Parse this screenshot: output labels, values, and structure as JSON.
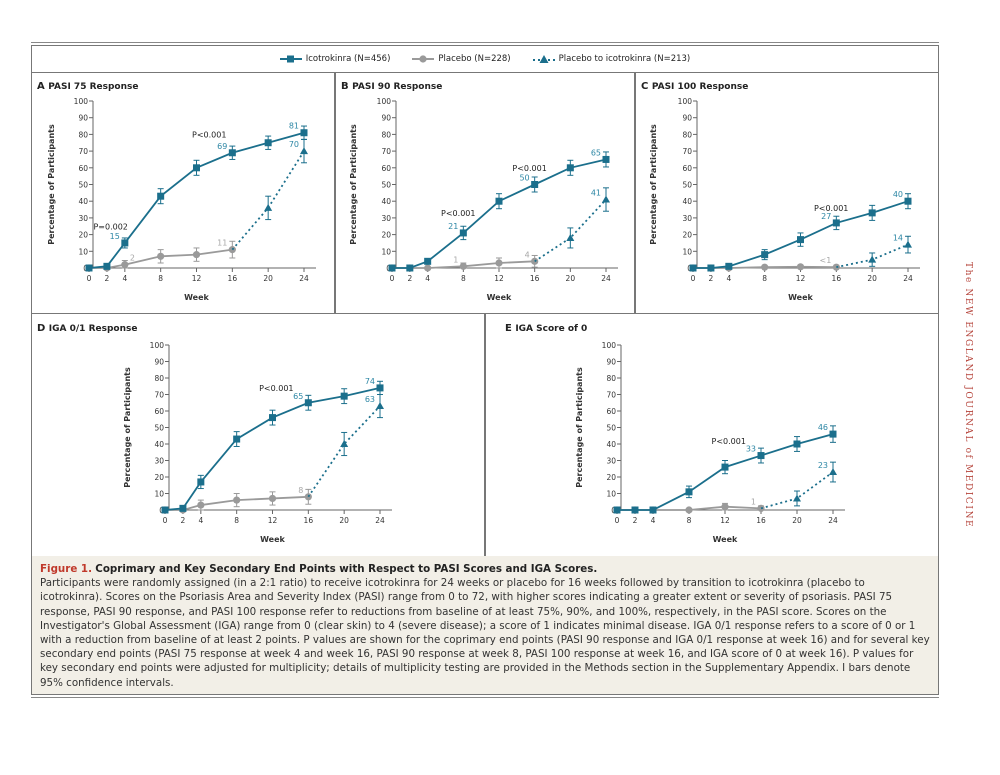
{
  "legend": {
    "items": [
      {
        "label": "Icotrokinra (N=456)",
        "marker": "square",
        "style": "solid",
        "color": "#1b6f8c"
      },
      {
        "label": "Placebo (N=228)",
        "marker": "circle",
        "style": "solid",
        "color": "#9a9a9a"
      },
      {
        "label": "Placebo to icotrokinra (N=213)",
        "marker": "triangle",
        "style": "dotted",
        "color": "#1b6f8c"
      }
    ]
  },
  "chart_data": [
    {
      "type": "line",
      "panel": "A",
      "title": "PASI 75 Response",
      "xlabel": "Week",
      "ylabel": "Percentage of Participants",
      "xticks": [
        0,
        2,
        4,
        8,
        12,
        16,
        20,
        24
      ],
      "ylim": [
        0,
        100
      ],
      "yticks": [
        0,
        10,
        20,
        30,
        40,
        50,
        60,
        70,
        80,
        90,
        100
      ],
      "series": [
        {
          "name": "Icotrokinra (N=456)",
          "x": [
            0,
            2,
            4,
            8,
            12,
            16,
            20,
            24
          ],
          "y": [
            0,
            1,
            15,
            43,
            60,
            69,
            75,
            81
          ],
          "ci": [
            0,
            1,
            3,
            4.5,
            4.5,
            4,
            4,
            4
          ]
        },
        {
          "name": "Placebo (N=228)",
          "x": [
            0,
            2,
            4,
            8,
            12,
            16
          ],
          "y": [
            0,
            0,
            2,
            7,
            8,
            11
          ],
          "ci": [
            0,
            0,
            2.5,
            4,
            4,
            5
          ]
        },
        {
          "name": "Placebo to icotrokinra (N=213)",
          "x": [
            16,
            20,
            24
          ],
          "y": [
            11,
            36,
            70
          ],
          "ci": [
            0,
            7,
            7
          ]
        }
      ],
      "data_labels": [
        {
          "series": 0,
          "x": 4,
          "text": "15"
        },
        {
          "series": 0,
          "x": 16,
          "text": "69"
        },
        {
          "series": 0,
          "x": 24,
          "text": "81"
        },
        {
          "series": 1,
          "x": 4,
          "text": "2",
          "side": "right"
        },
        {
          "series": 1,
          "x": 16,
          "text": "11"
        },
        {
          "series": 2,
          "x": 24,
          "text": "70"
        }
      ],
      "annotations": [
        {
          "text": "P=0.002",
          "x": 0.5,
          "y": 23
        },
        {
          "text": "P<0.001",
          "x": 11.5,
          "y": 78
        }
      ]
    },
    {
      "type": "line",
      "panel": "B",
      "title": "PASI 90 Response",
      "xlabel": "Week",
      "ylabel": "Percentage of Participants",
      "xticks": [
        0,
        2,
        4,
        8,
        12,
        16,
        20,
        24
      ],
      "ylim": [
        0,
        100
      ],
      "yticks": [
        0,
        10,
        20,
        30,
        40,
        50,
        60,
        70,
        80,
        90,
        100
      ],
      "series": [
        {
          "name": "Icotrokinra (N=456)",
          "x": [
            0,
            2,
            4,
            8,
            12,
            16,
            20,
            24
          ],
          "y": [
            0,
            0,
            4,
            21,
            40,
            50,
            60,
            65
          ],
          "ci": [
            0,
            0,
            1,
            4,
            4.5,
            4.5,
            4.5,
            4.5
          ]
        },
        {
          "name": "Placebo (N=228)",
          "x": [
            0,
            2,
            4,
            8,
            12,
            16
          ],
          "y": [
            0,
            0,
            0,
            1,
            3,
            4
          ],
          "ci": [
            0,
            0,
            0,
            2,
            3,
            3.5
          ]
        },
        {
          "name": "Placebo to icotrokinra (N=213)",
          "x": [
            16,
            20,
            24
          ],
          "y": [
            4,
            18,
            41
          ],
          "ci": [
            0,
            6,
            7
          ]
        }
      ],
      "data_labels": [
        {
          "series": 0,
          "x": 8,
          "text": "21"
        },
        {
          "series": 0,
          "x": 16,
          "text": "50"
        },
        {
          "series": 0,
          "x": 24,
          "text": "65"
        },
        {
          "series": 1,
          "x": 8,
          "text": "1"
        },
        {
          "series": 1,
          "x": 16,
          "text": "4"
        },
        {
          "series": 2,
          "x": 24,
          "text": "41"
        }
      ],
      "annotations": [
        {
          "text": "P<0.001",
          "x": 5.5,
          "y": 31
        },
        {
          "text": "P<0.001",
          "x": 13.5,
          "y": 58
        }
      ]
    },
    {
      "type": "line",
      "panel": "C",
      "title": "PASI 100 Response",
      "xlabel": "Week",
      "ylabel": "Percentage of Participants",
      "xticks": [
        0,
        2,
        4,
        8,
        12,
        16,
        20,
        24
      ],
      "ylim": [
        0,
        100
      ],
      "yticks": [
        0,
        10,
        20,
        30,
        40,
        50,
        60,
        70,
        80,
        90,
        100
      ],
      "series": [
        {
          "name": "Icotrokinra (N=456)",
          "x": [
            0,
            2,
            4,
            8,
            12,
            16,
            20,
            24
          ],
          "y": [
            0,
            0,
            1,
            8,
            17,
            27,
            33,
            40
          ],
          "ci": [
            0,
            0,
            0.5,
            3,
            4,
            4,
            4.5,
            4.5
          ]
        },
        {
          "name": "Placebo (N=228)",
          "x": [
            0,
            2,
            4,
            8,
            12,
            16
          ],
          "y": [
            0,
            0,
            0,
            0.5,
            0.7,
            0.5
          ],
          "ci": [
            0,
            0,
            0,
            0.5,
            1,
            0.5
          ]
        },
        {
          "name": "Placebo to icotrokinra (N=213)",
          "x": [
            16,
            20,
            24
          ],
          "y": [
            0.5,
            5,
            14
          ],
          "ci": [
            0,
            4,
            5
          ]
        }
      ],
      "data_labels": [
        {
          "series": 0,
          "x": 16,
          "text": "27"
        },
        {
          "series": 0,
          "x": 24,
          "text": "40"
        },
        {
          "series": 1,
          "x": 16,
          "text": "<1"
        },
        {
          "series": 2,
          "x": 24,
          "text": "14"
        }
      ],
      "annotations": [
        {
          "text": "P<0.001",
          "x": 13.5,
          "y": 34
        }
      ]
    },
    {
      "type": "line",
      "panel": "D",
      "title": "IGA 0/1 Response",
      "xlabel": "Week",
      "ylabel": "Percentage of Participants",
      "xticks": [
        0,
        2,
        4,
        8,
        12,
        16,
        20,
        24
      ],
      "ylim": [
        0,
        100
      ],
      "yticks": [
        0,
        10,
        20,
        30,
        40,
        50,
        60,
        70,
        80,
        90,
        100
      ],
      "series": [
        {
          "name": "Icotrokinra (N=456)",
          "x": [
            0,
            2,
            4,
            8,
            12,
            16,
            20,
            24
          ],
          "y": [
            0,
            1,
            17,
            43,
            56,
            65,
            69,
            74
          ],
          "ci": [
            0,
            1,
            4,
            4.5,
            4.5,
            4.5,
            4.5,
            4
          ]
        },
        {
          "name": "Placebo (N=228)",
          "x": [
            0,
            2,
            4,
            8,
            12,
            16
          ],
          "y": [
            0,
            0,
            3,
            6,
            7,
            8
          ],
          "ci": [
            0,
            0,
            3,
            4,
            4,
            4.5
          ]
        },
        {
          "name": "Placebo to icotrokinra (N=213)",
          "x": [
            16,
            20,
            24
          ],
          "y": [
            8,
            40,
            63
          ],
          "ci": [
            0,
            7,
            7
          ]
        }
      ],
      "data_labels": [
        {
          "series": 0,
          "x": 16,
          "text": "65"
        },
        {
          "series": 0,
          "x": 24,
          "text": "74"
        },
        {
          "series": 1,
          "x": 16,
          "text": "8"
        },
        {
          "series": 2,
          "x": 24,
          "text": "63"
        }
      ],
      "annotations": [
        {
          "text": "P<0.001",
          "x": 10.5,
          "y": 72
        }
      ]
    },
    {
      "type": "line",
      "panel": "E",
      "title": "IGA Score of 0",
      "xlabel": "Week",
      "ylabel": "Percentage of Participants",
      "xticks": [
        0,
        2,
        4,
        8,
        12,
        16,
        20,
        24
      ],
      "ylim": [
        0,
        100
      ],
      "yticks": [
        0,
        10,
        20,
        30,
        40,
        50,
        60,
        70,
        80,
        90,
        100
      ],
      "series": [
        {
          "name": "Icotrokinra (N=456)",
          "x": [
            0,
            2,
            4,
            8,
            12,
            16,
            20,
            24
          ],
          "y": [
            0,
            0,
            0,
            11,
            26,
            33,
            40,
            46
          ],
          "ci": [
            0,
            0,
            0.5,
            3.5,
            4,
            4.5,
            4.5,
            5
          ]
        },
        {
          "name": "Placebo (N=228)",
          "x": [
            0,
            2,
            4,
            8,
            12,
            16
          ],
          "y": [
            0,
            0,
            0,
            0,
            2,
            1
          ],
          "ci": [
            0,
            0,
            0,
            0.5,
            2,
            1.5
          ]
        },
        {
          "name": "Placebo to icotrokinra (N=213)",
          "x": [
            16,
            20,
            24
          ],
          "y": [
            1,
            7,
            23
          ],
          "ci": [
            0,
            4.5,
            6
          ]
        }
      ],
      "data_labels": [
        {
          "series": 0,
          "x": 16,
          "text": "33"
        },
        {
          "series": 0,
          "x": 24,
          "text": "46"
        },
        {
          "series": 1,
          "x": 16,
          "text": "1"
        },
        {
          "series": 2,
          "x": 24,
          "text": "23"
        }
      ],
      "annotations": [
        {
          "text": "P<0.001",
          "x": 10.5,
          "y": 40
        }
      ]
    }
  ],
  "caption": {
    "figure_label": "Figure 1.",
    "title": "Coprimary and Key Secondary End Points with Respect to PASI Scores and IGA Scores.",
    "body": "Participants were randomly assigned (in a 2:1 ratio) to receive icotrokinra for 24 weeks or placebo for 16 weeks followed by transition to icotrokinra (placebo to icotrokinra). Scores on the Psoriasis Area and Severity Index (PASI) range from 0 to 72, with higher scores indicating a greater extent or severity of psoriasis. PASI 75 response, PASI 90 response, and PASI 100 response refer to reductions from baseline of at least 75%, 90%, and 100%, respectively, in the PASI score. Scores on the Investigator's Global Assessment (IGA) range from 0 (clear skin) to 4 (severe disease); a score of 1 indicates minimal disease. IGA 0/1 response refers to a score of 0 or 1 with a reduction from baseline of at least 2 points. P values are shown for the coprimary end points (PASI 90 response and IGA 0/1 response at week 16) and for several key secondary end points (PASI 75 response at week 4 and week 16, PASI 90 response at week 8, PASI 100 response at week 16, and IGA score of 0 at week 16). P values for key secondary end points were adjusted for multiplicity; details of multiplicity testing are provided in the Methods section in the Supplementary Appendix. I bars denote 95% confidence intervals."
  },
  "journal": "The NEW ENGLAND JOURNAL of MEDICINE",
  "colors": {
    "teal": "#1b6f8c",
    "teal_label": "#2d87a5",
    "gray": "#9a9a9a",
    "gray_label": "#a8a8a8",
    "accent_red": "#c0392b",
    "caption_bg": "#f2efe7"
  }
}
